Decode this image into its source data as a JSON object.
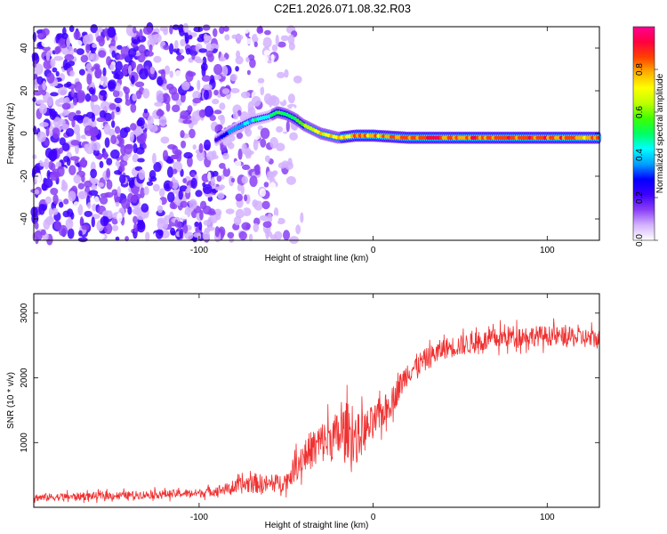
{
  "title": "C2E1.2026.071.08.32.R03",
  "chart_data": [
    {
      "type": "heatmap",
      "xlabel": "Height of straight line (km)",
      "ylabel": "Frequency (Hz)",
      "xlim": [
        -195,
        130
      ],
      "ylim": [
        -50,
        50
      ],
      "xticks": [
        -100,
        0,
        100
      ],
      "yticks": [
        -40,
        -20,
        0,
        20,
        40
      ],
      "colorbar": {
        "label": "Normalized spectral amplitude",
        "range": [
          0,
          1
        ],
        "ticks": [
          0.0,
          0.2,
          0.4,
          0.6,
          0.8
        ],
        "colors": [
          "#ffffff",
          "#d4b3ff",
          "#8a3ff5",
          "#3d00ff",
          "#0000ff",
          "#00a0ff",
          "#00ffff",
          "#00ff60",
          "#40ff00",
          "#c0ff00",
          "#ffff00",
          "#ffb000",
          "#ff4000",
          "#ff0040",
          "#ff0090"
        ]
      },
      "signal_line": {
        "x": [
          -90,
          -80,
          -70,
          -60,
          -55,
          -50,
          -45,
          -40,
          -30,
          -20,
          -10,
          0,
          20,
          60,
          100,
          130
        ],
        "freq": [
          -3,
          2,
          6,
          8,
          10,
          9,
          7,
          4,
          0,
          -2,
          -1,
          -1,
          -2,
          -2,
          -2,
          -2
        ],
        "amplitude": [
          0.3,
          0.4,
          0.5,
          0.55,
          0.6,
          0.6,
          0.65,
          0.7,
          0.8,
          0.85,
          0.9,
          0.9,
          0.95,
          0.95,
          0.95,
          0.9
        ]
      },
      "noise_region_x": [
        -195,
        -50
      ]
    },
    {
      "type": "line",
      "xlabel": "Height of straight line (km)",
      "ylabel": "SNR (10 * v/v)",
      "xlim": [
        -195,
        130
      ],
      "ylim": [
        0,
        3300
      ],
      "xticks": [
        -100,
        0,
        100
      ],
      "yticks": [
        1000,
        2000,
        3000
      ],
      "series": [
        {
          "name": "SNR",
          "color": "#f03030",
          "x": [
            -195,
            -150,
            -100,
            -80,
            -70,
            -60,
            -50,
            -40,
            -30,
            -20,
            -15,
            -10,
            0,
            10,
            20,
            40,
            60,
            80,
            100,
            130
          ],
          "y": [
            150,
            180,
            220,
            300,
            380,
            350,
            400,
            800,
            1000,
            1100,
            1200,
            1050,
            1300,
            1600,
            2100,
            2450,
            2550,
            2650,
            2650,
            2600
          ],
          "spread": [
            110,
            110,
            120,
            180,
            300,
            250,
            250,
            500,
            600,
            700,
            800,
            700,
            500,
            400,
            350,
            300,
            300,
            300,
            280,
            280
          ]
        }
      ]
    }
  ]
}
